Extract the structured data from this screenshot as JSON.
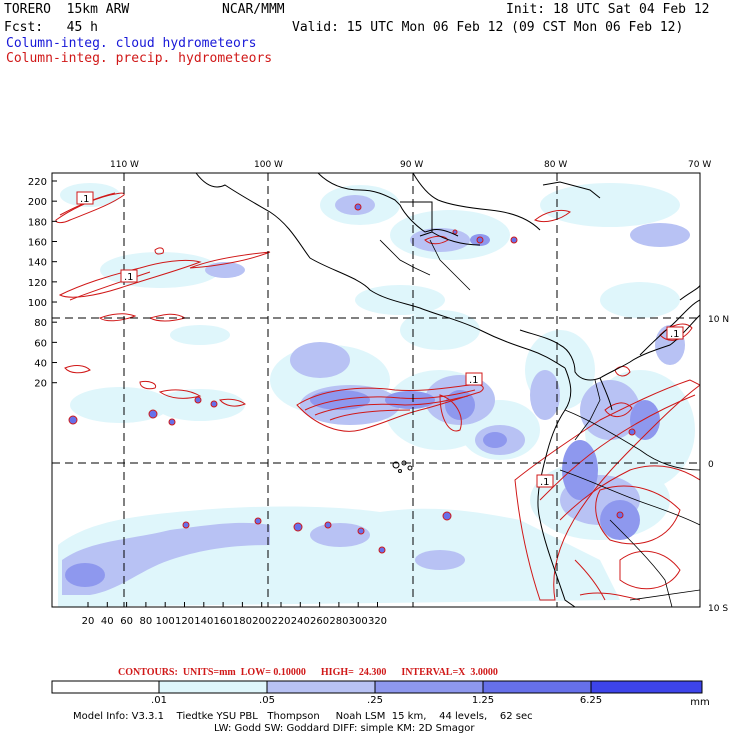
{
  "header": {
    "model": "TORERO  15km ARW",
    "org": "NCAR/MMM",
    "init": "Init: 18 UTC Sat 04 Feb 12",
    "fcst": "Fcst:   45 h",
    "valid": "Valid: 15 UTC Mon 06 Feb 12 (09 CST Mon 06 Feb 12)",
    "field1": "Column-integ. cloud hydrometeors",
    "field2": "Column-integ. precip. hydrometeors"
  },
  "colors": {
    "cloud_field": "#1818d8",
    "precip_field": "#d01818",
    "shade1": "#dff6fb",
    "shade2": "#b8c2f4",
    "shade3": "#8e98ee",
    "shade4": "#6670ea",
    "shade5": "#3d44ea",
    "shade6": "#1a1ae8"
  },
  "map": {
    "lon_labels": [
      "110 W",
      "100 W",
      "90 W",
      "80 W",
      "70 W"
    ],
    "lat_labels": [
      "10 N",
      "0",
      "10 S"
    ],
    "y_ticks": [
      "220",
      "200",
      "180",
      "160",
      "140",
      "120",
      "100",
      "80",
      "60",
      "40",
      "20"
    ],
    "x_ticks": [
      "20",
      "40",
      "60",
      "80",
      "100",
      "120",
      "140",
      "160",
      "180",
      "200",
      "220",
      "240",
      "260",
      "280",
      "300",
      "320"
    ],
    "box_labels": [
      ".1",
      ".1",
      ".1",
      ".1",
      ".1"
    ]
  },
  "footer": {
    "contours": "CONTOURS:  UNITS=mm  LOW= 0.10000      HIGH=  24.300      INTERVAL=X  3.0000",
    "legend_ticks": [
      ".01",
      ".05",
      ".25",
      "1.25",
      "6.25"
    ],
    "legend_unit": "mm",
    "info1": "Model Info: V3.3.1    Tiedtke YSU PBL   Thompson     Noah LSM  15 km,    44 levels,    62 sec",
    "info2": "LW: Godd SW: Goddard DIFF: simple KM: 2D Smagor"
  }
}
